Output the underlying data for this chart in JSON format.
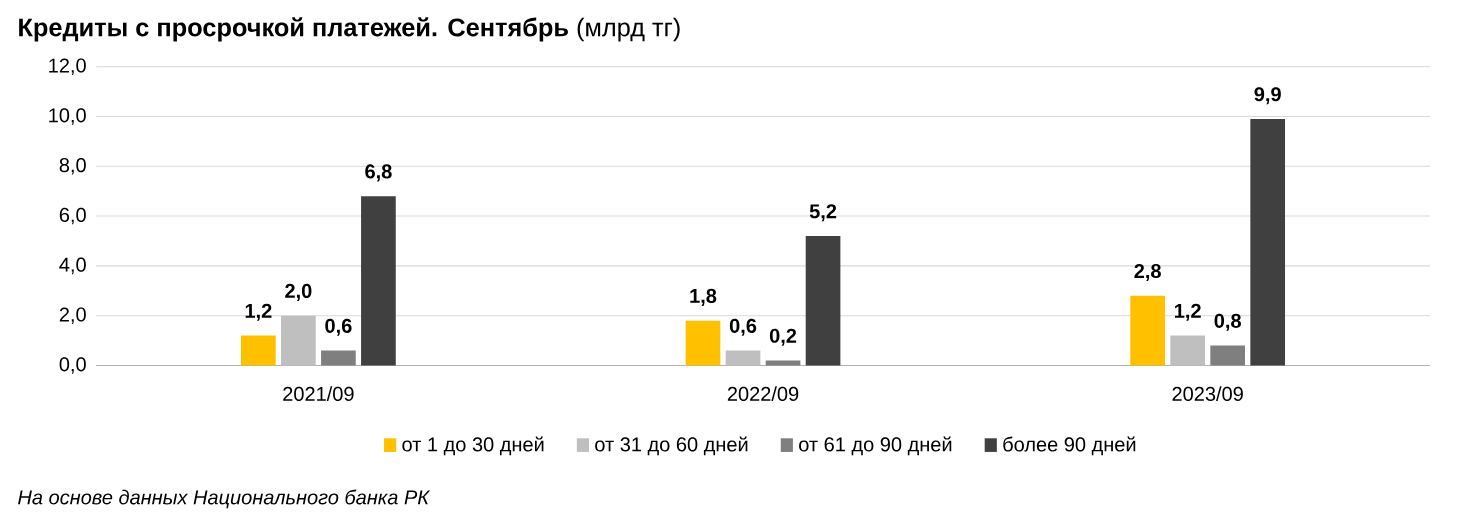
{
  "chart_data": {
    "type": "bar",
    "title": "**Кредиты с просрочкой платежей. Сентябрь** (млрд тг)",
    "categories": [
      "2021/09",
      "2022/09",
      "2023/09"
    ],
    "series": [
      {
        "name": "от 1 до 30 дней",
        "color": "#ffc000",
        "values": [
          1.2,
          1.8,
          2.8
        ],
        "value_labels": [
          "1,2",
          "1,8",
          "2,8"
        ]
      },
      {
        "name": "от 31 до 60 дней",
        "color": "#bfbfbf",
        "values": [
          2.0,
          0.6,
          1.2
        ],
        "value_labels": [
          "2,0",
          "0,6",
          "1,2"
        ]
      },
      {
        "name": "от 61 до 90 дней",
        "color": "#7f7f7f",
        "values": [
          0.6,
          0.2,
          0.8
        ],
        "value_labels": [
          "0,6",
          "0,2",
          "0,8"
        ]
      },
      {
        "name": "более 90 дней",
        "color": "#404040",
        "values": [
          6.8,
          5.2,
          9.9
        ],
        "value_labels": [
          "6,8",
          "5,2",
          "9,9"
        ]
      }
    ],
    "ylim": [
      0,
      12
    ],
    "yticks": [
      {
        "value": 0,
        "label": "0,0"
      },
      {
        "value": 2,
        "label": "2,0"
      },
      {
        "value": 4,
        "label": "4,0"
      },
      {
        "value": 6,
        "label": "6,0"
      },
      {
        "value": 8,
        "label": "8,0"
      },
      {
        "value": 10,
        "label": "10,0"
      },
      {
        "value": 12,
        "label": "12,0"
      }
    ],
    "grid": "y",
    "legend": "bottom",
    "annotations": [
      "На основе данных Национального банка РК"
    ]
  }
}
